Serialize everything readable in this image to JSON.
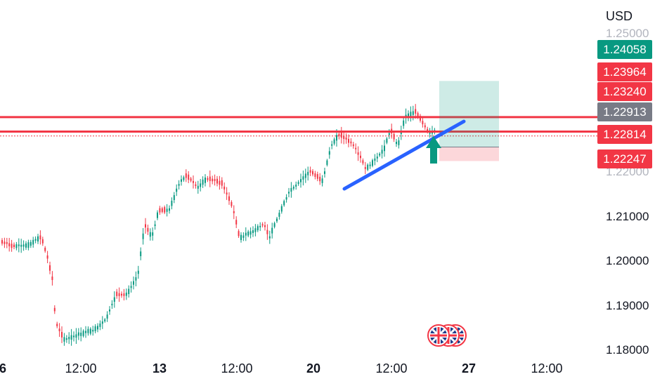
{
  "axis": {
    "currency": "USD",
    "price_ticks": [
      "1.25000",
      "1.22000",
      "1.21000",
      "1.20000",
      "1.19000",
      "1.18000"
    ],
    "time_ticks": [
      {
        "label": "6",
        "bold": true
      },
      {
        "label": "12:00",
        "bold": false
      },
      {
        "label": "13",
        "bold": true
      },
      {
        "label": "12:00",
        "bold": false
      },
      {
        "label": "20",
        "bold": true
      },
      {
        "label": "12:00",
        "bold": false
      },
      {
        "label": "27",
        "bold": true
      },
      {
        "label": "12:00",
        "bold": false
      }
    ]
  },
  "price_tags": [
    {
      "value": "1.24058",
      "color": "#089981"
    },
    {
      "value": "1.23964",
      "color": "#f23645"
    },
    {
      "value": "1.23240",
      "color": "#f23645"
    },
    {
      "value": "1.22913",
      "color": "#787b86"
    },
    {
      "value": "1.22814",
      "color": "#f23645"
    },
    {
      "value": "1.22247",
      "color": "#f23645"
    }
  ],
  "levels": {
    "resistance_upper": 1.2324,
    "resistance_lower": 1.22913,
    "last_price": 1.22814
  },
  "position": {
    "take_profit": 1.24058,
    "entry": 1.22913,
    "stop_loss": 1.22247
  },
  "colors": {
    "up_candle": "#089981",
    "down_candle": "#f23645",
    "trendline": "#2962ff",
    "arrow": "#089981",
    "level_line": "#f23645"
  },
  "icons": [
    "uk-flag-icon",
    "uk-flag-icon",
    "uk-flag-icon"
  ]
}
